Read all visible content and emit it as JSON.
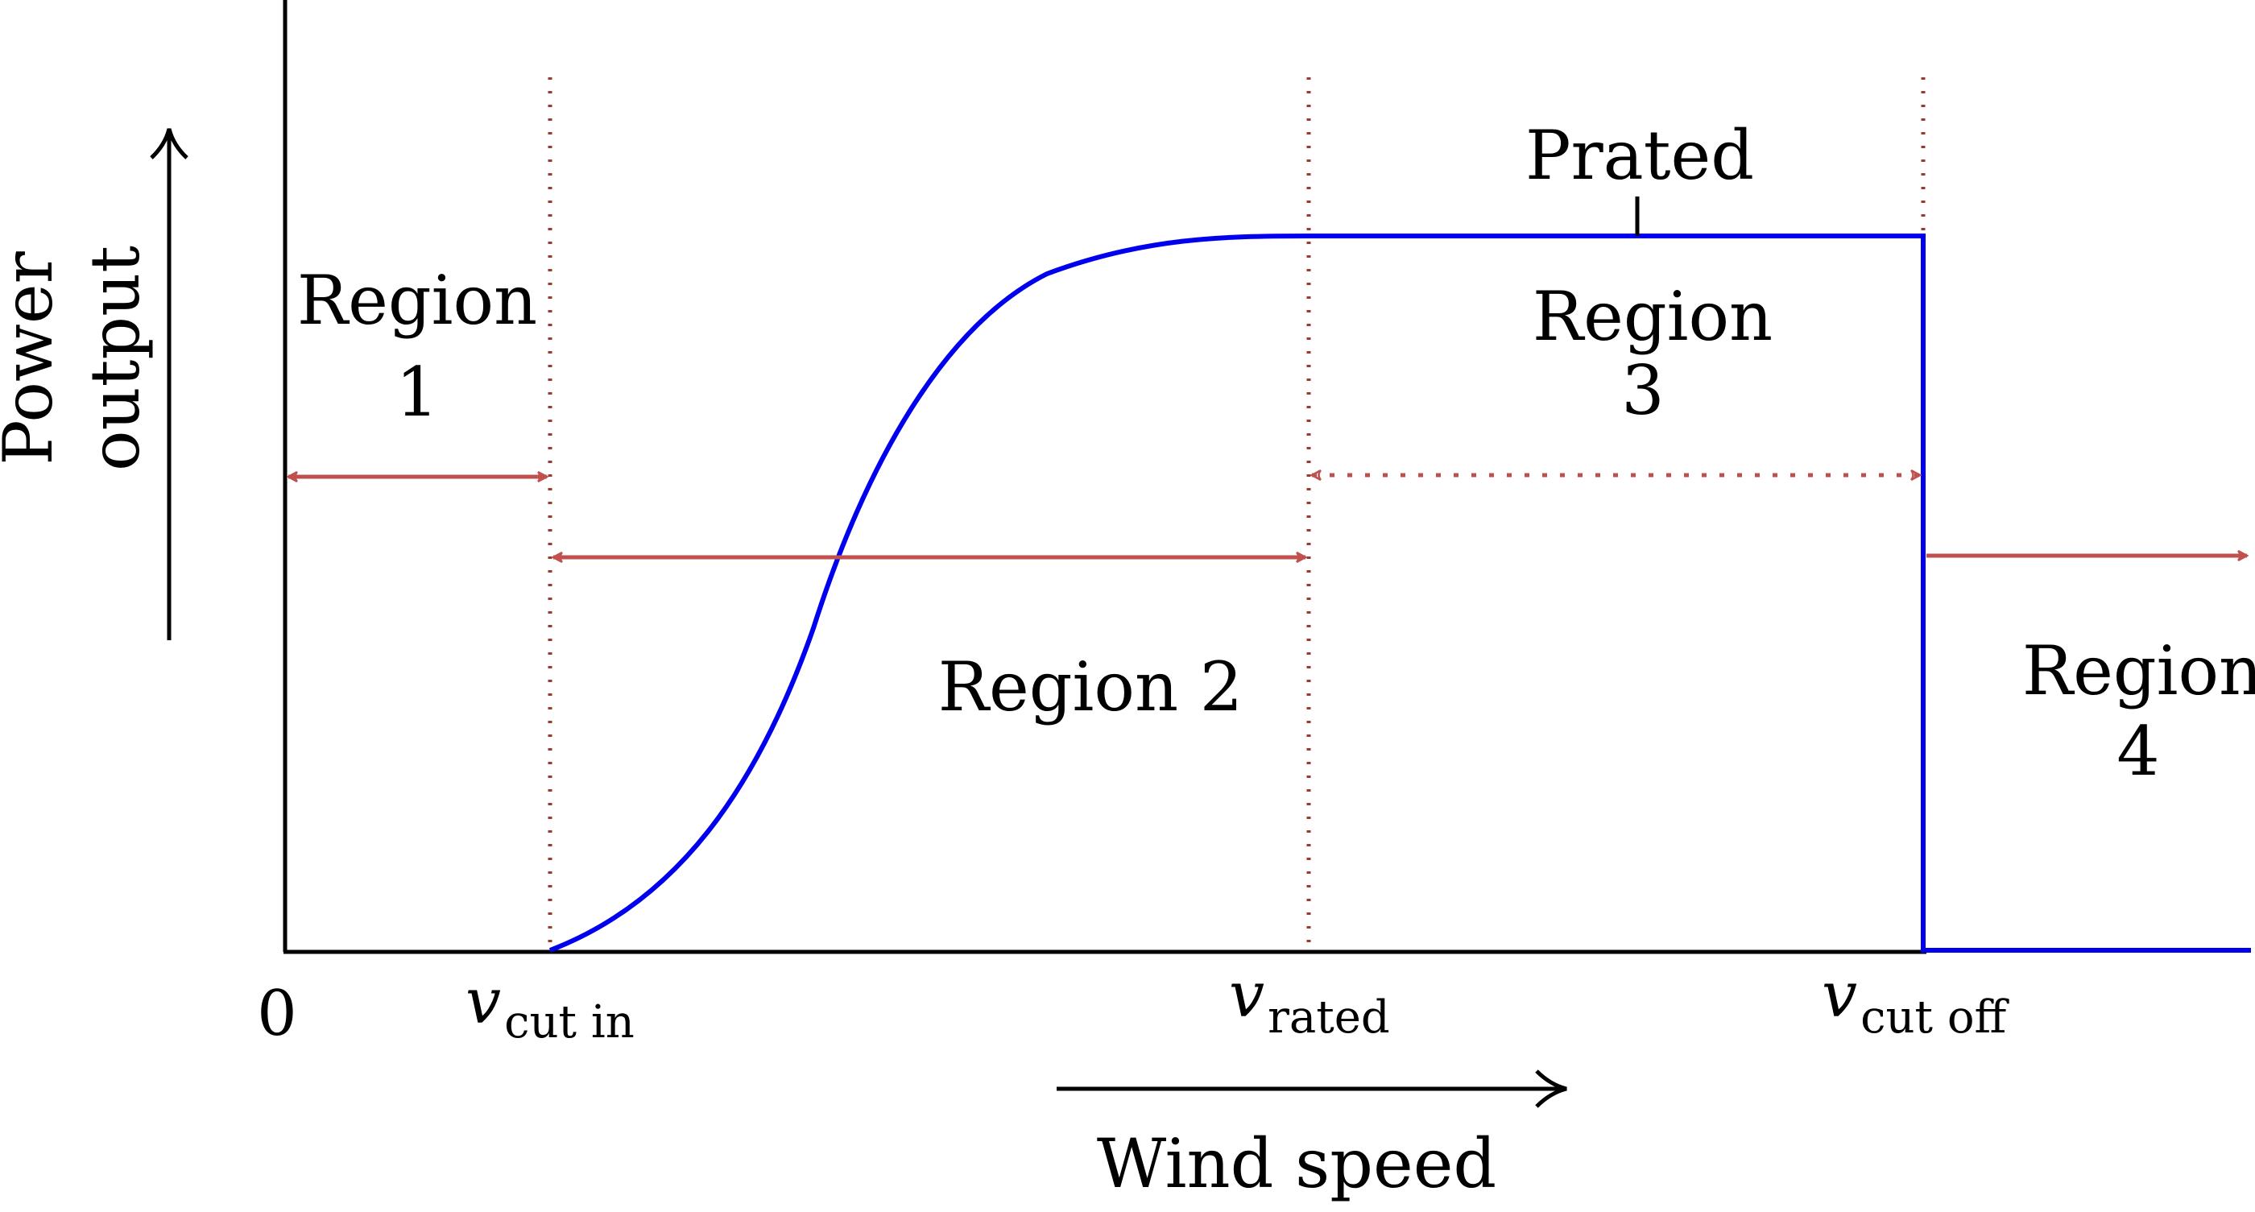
{
  "diagram": {
    "y_axis_label_line1": "Power",
    "y_axis_label_line2": "output",
    "x_axis_label": "Wind speed",
    "origin_label": "0",
    "speed_symbol": "v",
    "cut_in_sub": "cut in",
    "rated_sub": "rated",
    "cut_off_sub": "cut off",
    "prated_label": "Prated",
    "region1": {
      "line1": "Region",
      "line2": "1"
    },
    "region2": {
      "line1": "Region 2"
    },
    "region3": {
      "line1": "Region",
      "line2": "3"
    },
    "region4": {
      "line1": "Region",
      "line2": "4"
    }
  },
  "colors": {
    "curve": "#0000ee",
    "arrows": "#c0504d",
    "guides": "#9b3b30",
    "axes": "#000000"
  }
}
